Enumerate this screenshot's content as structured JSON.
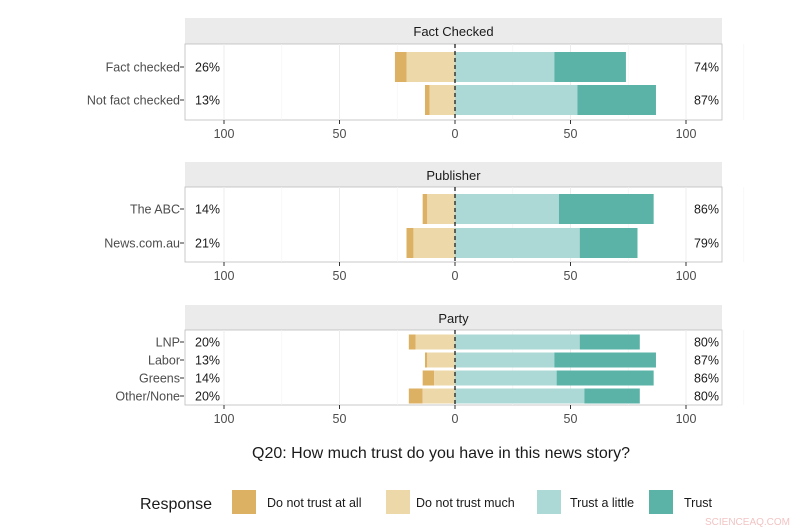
{
  "chart_data": {
    "type": "bar",
    "orientation": "horizontal",
    "stacking": "diverging",
    "title": "Q20: How much trust do you have in this news story?",
    "xlim": [
      -100,
      100
    ],
    "x_tick_labels": [
      "100",
      "50",
      "0",
      "50",
      "100"
    ],
    "x_ticks": [
      -100,
      -50,
      0,
      50,
      100
    ],
    "grid": true,
    "legend": {
      "title": "Response",
      "placement": "bottom",
      "entries": [
        "Do not trust at all",
        "Do not trust much",
        "Trust a little",
        "Trust"
      ]
    },
    "colors": {
      "Do not trust at all": "#dcb163",
      "Do not trust much": "#ecd8a9",
      "Trust a little": "#acd8d5",
      "Trust": "#5bb3a8"
    },
    "panels": [
      {
        "title": "Fact Checked",
        "rows": [
          {
            "label": "Fact checked",
            "left_label": "26%",
            "right_label": "74%",
            "values": {
              "Do not trust at all": 5,
              "Do not trust much": 21,
              "Trust a little": 43,
              "Trust": 31
            }
          },
          {
            "label": "Not fact checked",
            "left_label": "13%",
            "right_label": "87%",
            "values": {
              "Do not trust at all": 2,
              "Do not trust much": 11,
              "Trust a little": 53,
              "Trust": 34
            }
          }
        ]
      },
      {
        "title": "Publisher",
        "rows": [
          {
            "label": "The ABC",
            "left_label": "14%",
            "right_label": "86%",
            "values": {
              "Do not trust at all": 2,
              "Do not trust much": 12,
              "Trust a little": 45,
              "Trust": 41
            }
          },
          {
            "label": "News.com.au",
            "left_label": "21%",
            "right_label": "79%",
            "values": {
              "Do not trust at all": 3,
              "Do not trust much": 18,
              "Trust a little": 54,
              "Trust": 25
            }
          }
        ]
      },
      {
        "title": "Party",
        "rows": [
          {
            "label": "LNP",
            "left_label": "20%",
            "right_label": "80%",
            "values": {
              "Do not trust at all": 3,
              "Do not trust much": 17,
              "Trust a little": 54,
              "Trust": 26
            }
          },
          {
            "label": "Labor",
            "left_label": "13%",
            "right_label": "87%",
            "values": {
              "Do not trust at all": 1,
              "Do not trust much": 12,
              "Trust a little": 43,
              "Trust": 44
            }
          },
          {
            "label": "Greens",
            "left_label": "14%",
            "right_label": "86%",
            "values": {
              "Do not trust at all": 5,
              "Do not trust much": 9,
              "Trust a little": 44,
              "Trust": 42
            }
          },
          {
            "label": "Other/None",
            "left_label": "20%",
            "right_label": "80%",
            "values": {
              "Do not trust at all": 6,
              "Do not trust much": 14,
              "Trust a little": 56,
              "Trust": 24
            }
          }
        ]
      }
    ]
  },
  "watermark": "SCIENCEAQ.COM"
}
